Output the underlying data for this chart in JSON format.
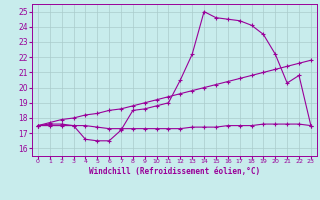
{
  "xlabel": "Windchill (Refroidissement éolien,°C)",
  "bg_color": "#c8ecec",
  "grid_color": "#aacccc",
  "line_color": "#990099",
  "xlim": [
    -0.5,
    23.5
  ],
  "ylim": [
    15.5,
    25.5
  ],
  "xticks": [
    0,
    1,
    2,
    3,
    4,
    5,
    6,
    7,
    8,
    9,
    10,
    11,
    12,
    13,
    14,
    15,
    16,
    17,
    18,
    19,
    20,
    21,
    22,
    23
  ],
  "yticks": [
    16,
    17,
    18,
    19,
    20,
    21,
    22,
    23,
    24,
    25
  ],
  "line1_x": [
    0,
    1,
    2,
    3,
    4,
    5,
    6,
    7,
    8,
    9,
    10,
    11,
    12,
    13,
    14,
    15,
    16,
    17,
    18,
    19,
    20,
    21,
    22,
    23
  ],
  "line1_y": [
    17.5,
    17.6,
    17.6,
    17.5,
    16.6,
    16.5,
    16.5,
    17.2,
    18.5,
    18.6,
    18.8,
    19.0,
    20.5,
    22.2,
    25.0,
    24.6,
    24.5,
    24.4,
    24.1,
    23.5,
    22.2,
    20.3,
    20.8,
    17.5
  ],
  "line2_x": [
    0,
    1,
    2,
    3,
    4,
    5,
    6,
    7,
    8,
    9,
    10,
    11,
    12,
    13,
    14,
    15,
    16,
    17,
    18,
    19,
    20,
    21,
    22,
    23
  ],
  "line2_y": [
    17.5,
    17.5,
    17.5,
    17.5,
    17.5,
    17.4,
    17.3,
    17.3,
    17.3,
    17.3,
    17.3,
    17.3,
    17.3,
    17.4,
    17.4,
    17.4,
    17.5,
    17.5,
    17.5,
    17.6,
    17.6,
    17.6,
    17.6,
    17.5
  ],
  "line3_x": [
    0,
    1,
    2,
    3,
    4,
    5,
    6,
    7,
    8,
    9,
    10,
    11,
    12,
    13,
    14,
    15,
    16,
    17,
    18,
    19,
    20,
    21,
    22,
    23
  ],
  "line3_y": [
    17.5,
    17.7,
    17.9,
    18.0,
    18.2,
    18.3,
    18.5,
    18.6,
    18.8,
    19.0,
    19.2,
    19.4,
    19.6,
    19.8,
    20.0,
    20.2,
    20.4,
    20.6,
    20.8,
    21.0,
    21.2,
    21.4,
    21.6,
    21.8
  ]
}
